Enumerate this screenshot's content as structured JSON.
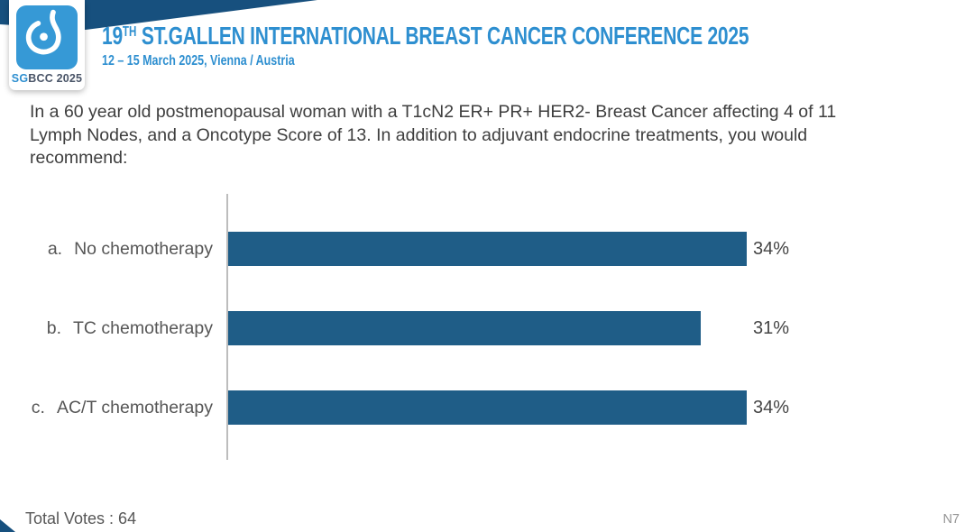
{
  "header": {
    "logo": {
      "icon": "sgbcc-breast-icon",
      "badge_primary": "SG",
      "badge_secondary": "BCC 2025",
      "square_color": "#3699D6"
    },
    "title_prefix": "19",
    "title_sup": "TH",
    "title_rest": " ST.GALLEN INTERNATIONAL BREAST CANCER CONFERENCE 2025",
    "subtitle": "12 – 15 March 2025, Vienna / Austria",
    "accent_color": "#2E8FD0",
    "wedge_color": "#17507E"
  },
  "question": {
    "lines": [
      "In a 60 year old postmenopausal woman with a T1cN2 ER+ PR+ HER2- Breast Cancer affecting 4 of 11",
      "Lymph Nodes, and a Oncotype Score of 13. In addition to adjuvant endocrine treatments, you would",
      "recommend:"
    ]
  },
  "chart_data": {
    "type": "bar",
    "orientation": "horizontal",
    "markers": [
      "a.",
      "b.",
      "c."
    ],
    "categories": [
      "No chemotherapy",
      "TC chemotherapy",
      "AC/T chemotherapy"
    ],
    "values": [
      34,
      31,
      34
    ],
    "value_labels": [
      "34%",
      "31%",
      "34%"
    ],
    "unit": "%",
    "xlim": [
      0,
      40
    ],
    "grid": false,
    "axis_style": "single left vertical baseline, no ticks or gridlines",
    "value_label_position": "fixed column right of bars",
    "bar_color": "#1F5D87",
    "total_votes": 64
  },
  "footer": {
    "total_votes_label": "Total Votes : 64",
    "slide_code": "N7"
  }
}
